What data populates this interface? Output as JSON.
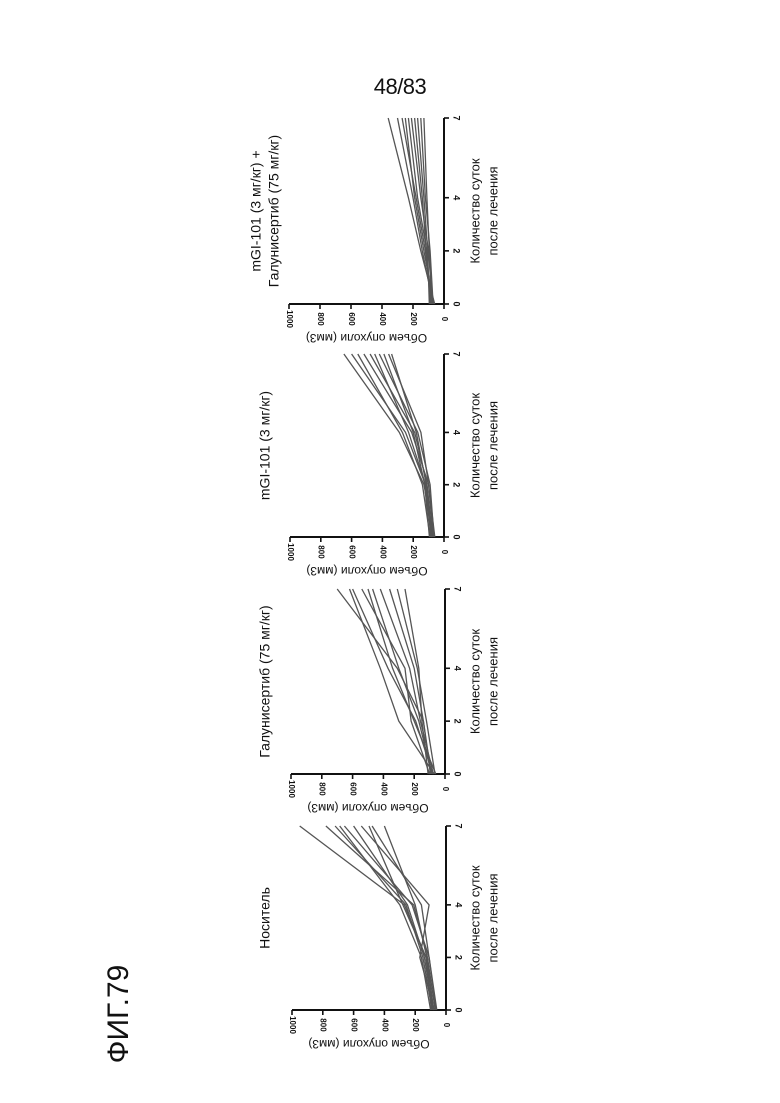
{
  "page_number": "48/83",
  "figure_label": "ФИГ.79",
  "chart_data": [
    {
      "type": "line",
      "title": "Носитель",
      "xlabel": [
        "Количество суток",
        "после лечения"
      ],
      "ylabel": "Объем опухоли (мм3)",
      "xlim": [
        0,
        7
      ],
      "ylim": [
        0,
        1000
      ],
      "xticks": [
        "0",
        "2",
        "4",
        "7"
      ],
      "yticks": [
        "0",
        "200",
        "400",
        "600",
        "800",
        "1000"
      ],
      "line_color": "#555555",
      "series": [
        {
          "x": [
            0,
            2,
            4,
            7
          ],
          "y": [
            80,
            130,
            270,
            950
          ]
        },
        {
          "x": [
            0,
            2,
            4,
            7
          ],
          "y": [
            70,
            120,
            210,
            780
          ]
        },
        {
          "x": [
            0,
            2,
            4,
            7
          ],
          "y": [
            90,
            150,
            260,
            720
          ]
        },
        {
          "x": [
            0,
            2,
            4,
            7
          ],
          "y": [
            60,
            110,
            220,
            660
          ]
        },
        {
          "x": [
            0,
            2,
            4,
            7
          ],
          "y": [
            100,
            160,
            300,
            690
          ]
        },
        {
          "x": [
            0,
            2,
            4,
            7
          ],
          "y": [
            85,
            140,
            250,
            600
          ]
        },
        {
          "x": [
            0,
            2,
            4,
            7
          ],
          "y": [
            75,
            170,
            110,
            550
          ]
        },
        {
          "x": [
            0,
            2,
            4,
            7
          ],
          "y": [
            95,
            130,
            280,
            500
          ]
        },
        {
          "x": [
            0,
            2,
            4,
            7
          ],
          "y": [
            65,
            110,
            160,
            480
          ]
        },
        {
          "x": [
            0,
            2,
            4,
            7
          ],
          "y": [
            80,
            125,
            200,
            400
          ]
        }
      ]
    },
    {
      "type": "line",
      "title": "Галунисертиб (75 мг/кг)",
      "xlabel": [
        "Количество суток",
        "после лечения"
      ],
      "ylabel": "Объем опухоли (мм3)",
      "xlim": [
        0,
        7
      ],
      "ylim": [
        0,
        1000
      ],
      "xticks": [
        "0",
        "2",
        "4",
        "7"
      ],
      "yticks": [
        "0",
        "200",
        "400",
        "600",
        "800",
        "1000"
      ],
      "line_color": "#555555",
      "series": [
        {
          "x": [
            0,
            2,
            4,
            7
          ],
          "y": [
            90,
            140,
            310,
            700
          ]
        },
        {
          "x": [
            0,
            2,
            4,
            7
          ],
          "y": [
            70,
            300,
            420,
            620
          ]
        },
        {
          "x": [
            0,
            2,
            4,
            7
          ],
          "y": [
            80,
            190,
            370,
            600
          ]
        },
        {
          "x": [
            0,
            2,
            4,
            7
          ],
          "y": [
            100,
            220,
            260,
            540
          ]
        },
        {
          "x": [
            0,
            2,
            4,
            7
          ],
          "y": [
            60,
            200,
            340,
            500
          ]
        },
        {
          "x": [
            0,
            2,
            4,
            7
          ],
          "y": [
            85,
            170,
            300,
            470
          ]
        },
        {
          "x": [
            0,
            2,
            4,
            7
          ],
          "y": [
            75,
            160,
            230,
            420
          ]
        },
        {
          "x": [
            0,
            2,
            4,
            7
          ],
          "y": [
            95,
            140,
            200,
            360
          ]
        },
        {
          "x": [
            0,
            2,
            4,
            7
          ],
          "y": [
            65,
            120,
            180,
            310
          ]
        },
        {
          "x": [
            0,
            2,
            4,
            7
          ],
          "y": [
            110,
            150,
            170,
            260
          ]
        }
      ]
    },
    {
      "type": "line",
      "title": "mGI-101 (3 мг/кг)",
      "xlabel": [
        "Количество суток",
        "после лечения"
      ],
      "ylabel": "Объем опухоли (мм3)",
      "xlim": [
        0,
        7
      ],
      "ylim": [
        0,
        1000
      ],
      "xticks": [
        "0",
        "2",
        "4",
        "7"
      ],
      "yticks": [
        "0",
        "200",
        "400",
        "600",
        "800",
        "1000"
      ],
      "line_color": "#555555",
      "series": [
        {
          "x": [
            0,
            2,
            4,
            7
          ],
          "y": [
            70,
            130,
            290,
            650
          ]
        },
        {
          "x": [
            0,
            2,
            4,
            7
          ],
          "y": [
            80,
            120,
            250,
            600
          ]
        },
        {
          "x": [
            0,
            2,
            4,
            7
          ],
          "y": [
            90,
            140,
            270,
            560
          ]
        },
        {
          "x": [
            0,
            2,
            4,
            7
          ],
          "y": [
            60,
            100,
            210,
            520
          ]
        },
        {
          "x": [
            0,
            2,
            4,
            7
          ],
          "y": [
            75,
            110,
            190,
            480
          ]
        },
        {
          "x": [
            0,
            2,
            4,
            7
          ],
          "y": [
            85,
            120,
            230,
            450
          ]
        },
        {
          "x": [
            0,
            2,
            4,
            7
          ],
          "y": [
            65,
            90,
            170,
            420
          ]
        },
        {
          "x": [
            0,
            2,
            4,
            7
          ],
          "y": [
            95,
            125,
            200,
            390
          ]
        },
        {
          "x": [
            0,
            2,
            4,
            7
          ],
          "y": [
            70,
            100,
            150,
            360
          ]
        },
        {
          "x": [
            0,
            2,
            4,
            7
          ],
          "y": [
            80,
            115,
            180,
            340
          ]
        }
      ]
    },
    {
      "type": "line",
      "title": "mGI-101 (3 мг/кг) + Галунисертиб (75 мг/кг)",
      "title_lines": [
        "mGI-101 (3 мг/кг) +",
        "Галунисертиб (75 мг/кг)"
      ],
      "xlabel": [
        "Количество суток",
        "после лечения"
      ],
      "ylabel": "Объем опухоли (мм3)",
      "xlim": [
        0,
        7
      ],
      "ylim": [
        0,
        1000
      ],
      "xticks": [
        "0",
        "2",
        "4",
        "7"
      ],
      "yticks": [
        "0",
        "200",
        "400",
        "600",
        "800",
        "1000"
      ],
      "line_color": "#555555",
      "series": [
        {
          "x": [
            0,
            2,
            4,
            7
          ],
          "y": [
            60,
            150,
            230,
            360
          ]
        },
        {
          "x": [
            0,
            2,
            4,
            7
          ],
          "y": [
            70,
            140,
            200,
            300
          ]
        },
        {
          "x": [
            0,
            2,
            4,
            7
          ],
          "y": [
            80,
            120,
            180,
            270
          ]
        },
        {
          "x": [
            0,
            2,
            4,
            7
          ],
          "y": [
            65,
            130,
            190,
            250
          ]
        },
        {
          "x": [
            0,
            2,
            4,
            7
          ],
          "y": [
            90,
            110,
            170,
            230
          ]
        },
        {
          "x": [
            0,
            2,
            4,
            7
          ],
          "y": [
            75,
            100,
            150,
            210
          ]
        },
        {
          "x": [
            0,
            2,
            4,
            7
          ],
          "y": [
            85,
            115,
            140,
            190
          ]
        },
        {
          "x": [
            0,
            2,
            4,
            7
          ],
          "y": [
            95,
            105,
            130,
            170
          ]
        },
        {
          "x": [
            0,
            2,
            4,
            7
          ],
          "y": [
            70,
            90,
            120,
            150
          ]
        },
        {
          "x": [
            0,
            2,
            4,
            7
          ],
          "y": [
            80,
            95,
            110,
            130
          ]
        }
      ]
    }
  ]
}
